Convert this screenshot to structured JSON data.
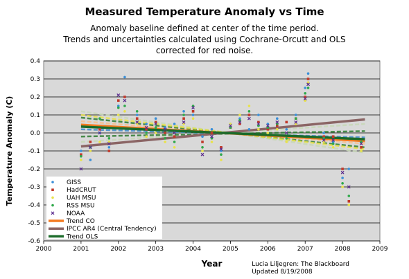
{
  "chart_data": {
    "type": "scatter",
    "title": "Measured Temperature Anomaly vs Time",
    "subtitle": [
      "Anomaly baseline defined at center of the time period.",
      "Trends and uncertainties calculated using Cochrane-Orcutt and OLS",
      "corrected for red noise."
    ],
    "xlabel": "Year",
    "ylabel": "Temperature Anomaly (C)",
    "xlim": [
      2000,
      2009
    ],
    "ylim": [
      -0.6,
      0.4
    ],
    "xticks": [
      "2000",
      "2001",
      "2002",
      "2003",
      "2004",
      "2005",
      "2006",
      "2007",
      "2008",
      "2009"
    ],
    "yticks": [
      "0.4",
      "0.3",
      "0.2",
      "0.1",
      "0.0",
      "-0.1",
      "-0.2",
      "-0.3",
      "-0.4",
      "-0.5",
      "-0.6"
    ],
    "grid": "horizontal",
    "plot_background": "#d9d9d9",
    "legend_position": "bottom-left",
    "credit": [
      "Lucia Liljegren: The Blackboard",
      "Updated 8/19/2008"
    ],
    "series": [
      {
        "name": "GISS",
        "marker": "dot",
        "color": "#3a8fd8",
        "x": [
          2001.0,
          2001.25,
          2001.5,
          2001.75,
          2002.0,
          2002.17,
          2002.5,
          2002.75,
          2003.0,
          2003.25,
          2003.5,
          2003.75,
          2004.0,
          2004.25,
          2004.5,
          2004.75,
          2005.0,
          2005.25,
          2005.5,
          2005.75,
          2006.0,
          2006.25,
          2006.5,
          2006.75,
          2007.0,
          2007.08,
          2007.5,
          2007.75,
          2008.0,
          2008.17,
          2008.5
        ],
        "y": [
          -0.1,
          -0.15,
          0.0,
          -0.08,
          0.15,
          0.31,
          0.1,
          0.05,
          0.08,
          0.03,
          0.05,
          0.12,
          0.1,
          -0.02,
          0.02,
          -0.1,
          0.05,
          0.08,
          0.02,
          0.1,
          0.05,
          0.08,
          0.02,
          0.1,
          0.25,
          0.33,
          0.0,
          -0.05,
          -0.25,
          -0.2,
          -0.05
        ]
      },
      {
        "name": "HadCRUT",
        "marker": "square",
        "color": "#c0392b",
        "x": [
          2001.0,
          2001.25,
          2001.5,
          2001.75,
          2002.0,
          2002.17,
          2002.5,
          2002.75,
          2003.0,
          2003.25,
          2003.5,
          2003.75,
          2004.0,
          2004.25,
          2004.5,
          2004.75,
          2005.0,
          2005.25,
          2005.5,
          2005.75,
          2006.0,
          2006.25,
          2006.5,
          2006.75,
          2007.0,
          2007.08,
          2007.5,
          2007.75,
          2008.0,
          2008.17,
          2008.5
        ],
        "y": [
          -0.12,
          -0.05,
          0.02,
          -0.1,
          0.18,
          0.2,
          0.08,
          0.02,
          0.06,
          0.0,
          -0.02,
          0.08,
          0.12,
          -0.05,
          0.0,
          -0.08,
          0.03,
          0.05,
          0.1,
          0.06,
          0.02,
          0.04,
          0.06,
          0.08,
          0.2,
          0.3,
          -0.02,
          -0.02,
          -0.2,
          -0.38,
          -0.08
        ]
      },
      {
        "name": "UAH MSU",
        "marker": "dot",
        "color": "#e8e24a",
        "x": [
          2001.0,
          2001.25,
          2001.5,
          2001.75,
          2002.0,
          2002.17,
          2002.5,
          2002.75,
          2003.0,
          2003.25,
          2003.5,
          2003.75,
          2004.0,
          2004.25,
          2004.5,
          2004.75,
          2005.0,
          2005.25,
          2005.5,
          2005.75,
          2006.0,
          2006.25,
          2006.5,
          2006.75,
          2007.0,
          2007.08,
          2007.5,
          2007.75,
          2008.0,
          2008.17,
          2008.5
        ],
        "y": [
          -0.15,
          -0.1,
          -0.05,
          -0.05,
          0.1,
          0.12,
          0.05,
          -0.02,
          0.0,
          -0.05,
          -0.08,
          0.05,
          0.08,
          -0.1,
          -0.05,
          -0.15,
          0.05,
          0.1,
          0.15,
          0.02,
          0.0,
          0.02,
          -0.05,
          0.05,
          0.18,
          0.28,
          -0.05,
          -0.08,
          -0.3,
          -0.4,
          -0.1
        ]
      },
      {
        "name": "RSS MSU",
        "marker": "dot",
        "color": "#2ea84a",
        "x": [
          2001.0,
          2001.25,
          2001.5,
          2001.75,
          2002.0,
          2002.17,
          2002.5,
          2002.75,
          2003.0,
          2003.25,
          2003.5,
          2003.75,
          2004.0,
          2004.25,
          2004.5,
          2004.75,
          2005.0,
          2005.25,
          2005.5,
          2005.75,
          2006.0,
          2006.25,
          2006.5,
          2006.75,
          2007.0,
          2007.08,
          2007.5,
          2007.75,
          2008.0,
          2008.17,
          2008.5
        ],
        "y": [
          -0.13,
          -0.08,
          0.08,
          -0.03,
          0.14,
          0.15,
          0.12,
          0.0,
          0.03,
          -0.03,
          -0.05,
          0.1,
          0.15,
          -0.08,
          -0.03,
          -0.12,
          0.03,
          0.07,
          0.12,
          0.04,
          0.03,
          0.05,
          -0.03,
          0.08,
          0.22,
          0.25,
          -0.03,
          -0.06,
          -0.28,
          -0.35,
          -0.05
        ]
      },
      {
        "name": "NOAA",
        "marker": "x",
        "color": "#5b2c8e",
        "x": [
          2001.0,
          2001.25,
          2001.5,
          2001.75,
          2002.0,
          2002.17,
          2002.5,
          2002.75,
          2003.0,
          2003.25,
          2003.5,
          2003.75,
          2004.0,
          2004.25,
          2004.5,
          2004.75,
          2005.0,
          2005.25,
          2005.5,
          2005.75,
          2006.0,
          2006.25,
          2006.5,
          2006.75,
          2007.0,
          2007.08,
          2007.5,
          2007.75,
          2008.0,
          2008.17,
          2008.5
        ],
        "y": [
          -0.2,
          -0.08,
          0.0,
          -0.06,
          0.21,
          0.18,
          0.06,
          0.03,
          0.05,
          0.02,
          0.0,
          0.06,
          0.14,
          -0.12,
          -0.02,
          -0.09,
          0.04,
          0.06,
          0.08,
          0.05,
          0.04,
          0.06,
          0.0,
          0.06,
          0.19,
          0.27,
          -0.04,
          -0.04,
          -0.22,
          -0.3,
          -0.06
        ]
      }
    ],
    "trend_lines": [
      {
        "name": "Trend CO",
        "color": "#f47a20",
        "x": [
          2001,
          2008.6
        ],
        "y": [
          0.045,
          -0.045
        ]
      },
      {
        "name": "IPCC AR4 (Central Tendency)",
        "color": "#8b6565",
        "x": [
          2001,
          2008.6
        ],
        "y": [
          -0.075,
          0.075
        ]
      },
      {
        "name": "Trend OLS",
        "color": "#1b6b2a",
        "x": [
          2001,
          2008.6
        ],
        "y": [
          0.035,
          -0.035
        ]
      }
    ],
    "band_lines": [
      {
        "color": "#c8d8b8",
        "x": [
          2001,
          2008.6
        ],
        "y": [
          0.12,
          -0.11
        ]
      },
      {
        "color": "#c8d8b8",
        "x": [
          2001,
          2008.6
        ],
        "y": [
          -0.05,
          0.05
        ]
      },
      {
        "color": "#f8c090",
        "x": [
          2001,
          2008.6
        ],
        "y": [
          0.065,
          -0.06
        ]
      },
      {
        "color": "#f8c090",
        "x": [
          2001,
          2008.6
        ],
        "y": [
          0.02,
          -0.025
        ]
      },
      {
        "color": "#2e7d32",
        "x": [
          2001,
          2008.6
        ],
        "y": [
          0.085,
          -0.08
        ]
      },
      {
        "color": "#2e7d32",
        "x": [
          2001,
          2008.6
        ],
        "y": [
          -0.02,
          0.01
        ]
      },
      {
        "color": "#e8e24a",
        "x": [
          2001,
          2008.6
        ],
        "y": [
          0.1,
          -0.09
        ]
      },
      {
        "color": "#3a8fd8",
        "x": [
          2001,
          2008.6
        ],
        "y": [
          0.02,
          -0.025
        ]
      }
    ]
  }
}
